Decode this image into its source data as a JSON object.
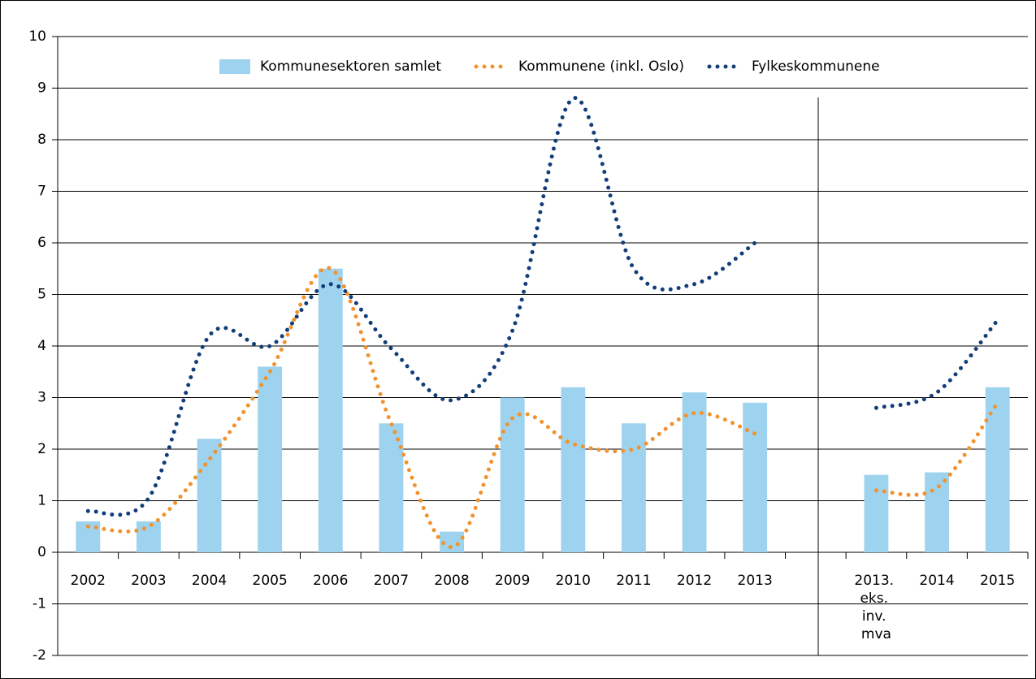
{
  "chart_data": {
    "type": "bar",
    "categories": [
      "2002",
      "2003",
      "2004",
      "2005",
      "2006",
      "2007",
      "2008",
      "2009",
      "2010",
      "2011",
      "2012",
      "2013",
      null,
      "2013. eks. inv. mva",
      "2014",
      "2015"
    ],
    "series": [
      {
        "name": "Kommunesektoren samlet",
        "type": "bar",
        "color": "#9dd3ee",
        "values": [
          0.6,
          0.6,
          2.2,
          3.6,
          5.5,
          2.5,
          0.4,
          3.0,
          3.2,
          2.5,
          3.1,
          2.9,
          null,
          1.5,
          1.55,
          3.2
        ]
      },
      {
        "name": "Kommunene (inkl. Oslo)",
        "type": "line",
        "color": "#f0922e",
        "values": [
          0.5,
          0.5,
          1.8,
          3.5,
          5.5,
          2.5,
          0.1,
          2.6,
          2.1,
          2.0,
          2.7,
          2.3,
          null,
          1.2,
          1.25,
          2.9
        ]
      },
      {
        "name": "Fylkeskommunene",
        "type": "line",
        "color": "#123d78",
        "values": [
          0.8,
          1.05,
          4.2,
          4.0,
          5.2,
          3.95,
          2.95,
          4.3,
          8.8,
          5.5,
          5.2,
          6.0,
          null,
          2.8,
          3.1,
          4.5
        ]
      }
    ],
    "ylim": [
      -2,
      10
    ],
    "yticks": [
      -2,
      -1,
      0,
      1,
      2,
      3,
      4,
      5,
      6,
      7,
      8,
      9,
      10
    ],
    "grid": true,
    "legend": "top"
  }
}
